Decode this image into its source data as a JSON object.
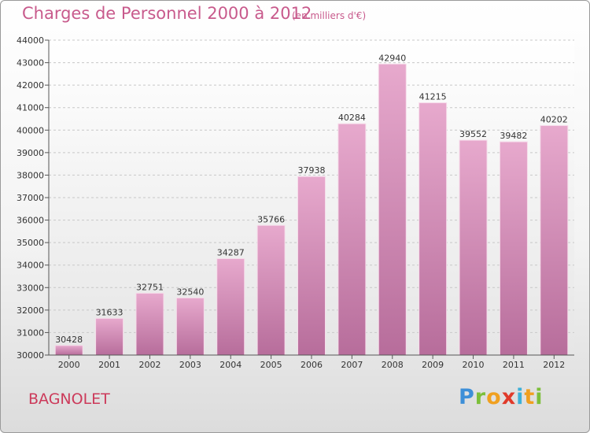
{
  "header": {
    "title": "Charges de Personnel 2000 à 2012",
    "subtitle": "(en milliers d'€)"
  },
  "footer": {
    "city": "BAGNOLET",
    "brand": "Proxiti"
  },
  "colors": {
    "bar_top": "#e7a9cd",
    "bar_bottom": "#b76d9b",
    "title": "#c85a8c",
    "city": "#cc3a5a"
  },
  "chart_data": {
    "type": "bar",
    "title": "Charges de Personnel 2000 à 2012",
    "subtitle": "(en milliers d'€)",
    "xlabel": "",
    "ylabel": "",
    "categories": [
      "2000",
      "2001",
      "2002",
      "2003",
      "2004",
      "2005",
      "2006",
      "2007",
      "2008",
      "2009",
      "2010",
      "2011",
      "2012"
    ],
    "values": [
      30428,
      31633,
      32751,
      32540,
      34287,
      35766,
      37938,
      40284,
      42940,
      41215,
      39552,
      39482,
      40202
    ],
    "ylim": [
      30000,
      44000
    ],
    "yticks": [
      30000,
      31000,
      32000,
      33000,
      34000,
      35000,
      36000,
      37000,
      38000,
      39000,
      40000,
      41000,
      42000,
      43000,
      44000
    ],
    "grid": "horizontal",
    "data_labels": true
  }
}
